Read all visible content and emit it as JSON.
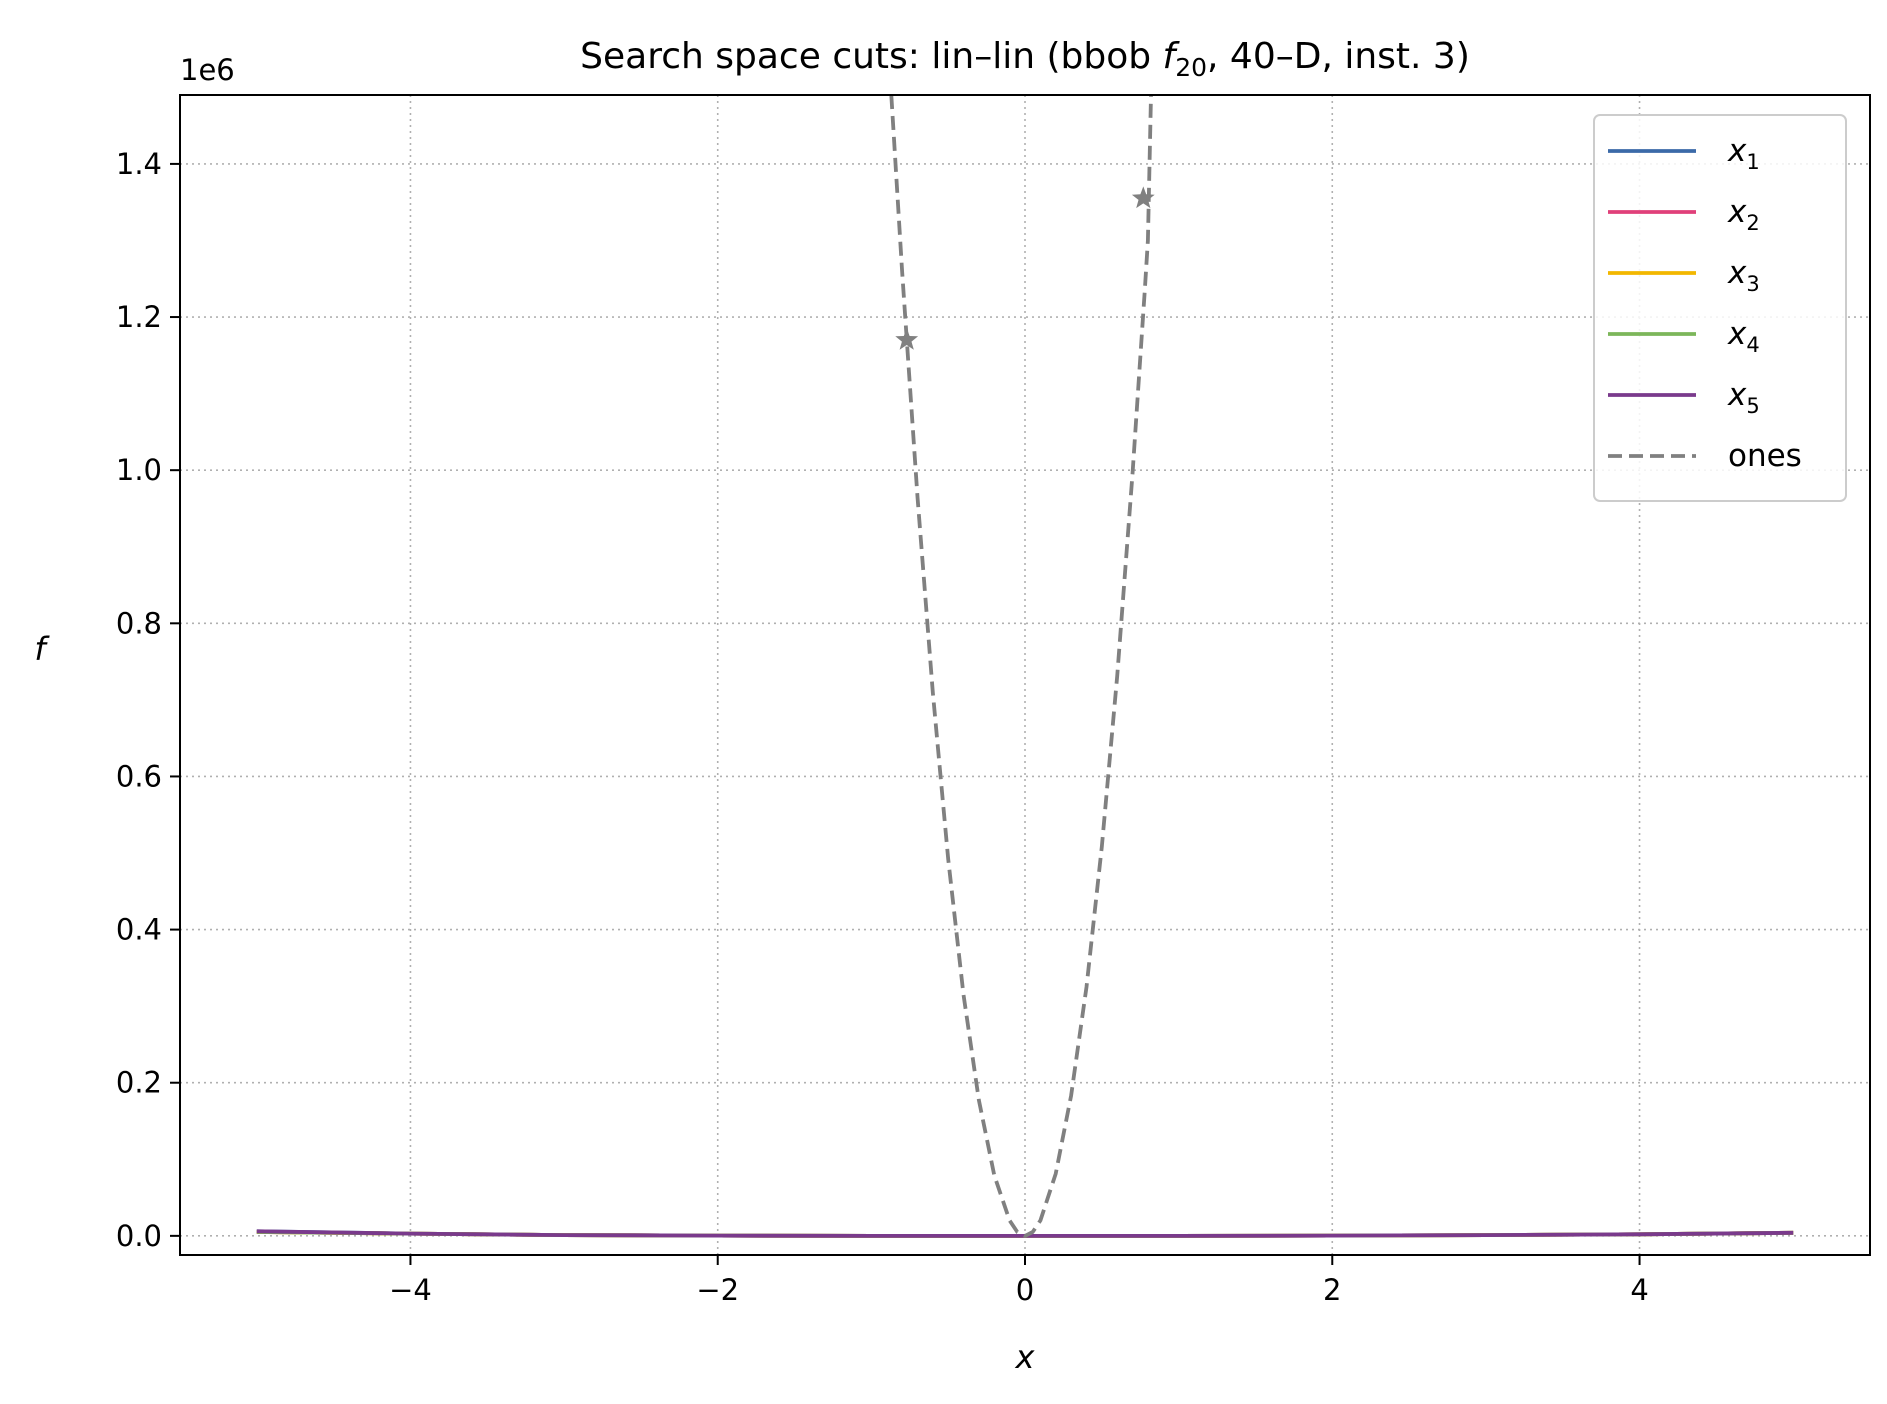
{
  "chart_data": {
    "type": "line",
    "title": {
      "main": "Search space cuts: lin–lin (bbob ",
      "func": "f",
      "func_sub": "20",
      "rest": ", 40–D, inst. 3)"
    },
    "xlabel": "x",
    "ylabel": "f",
    "y_offset_text": "1e6",
    "xlim": [
      -5.5,
      5.5
    ],
    "ylim": [
      -0.025,
      1.49
    ],
    "x_ticks": [
      -4,
      -2,
      0,
      2,
      4
    ],
    "x_tick_labels": [
      "−4",
      "−2",
      "0",
      "2",
      "4"
    ],
    "y_ticks": [
      0.0,
      0.2,
      0.4,
      0.6,
      0.8,
      1.0,
      1.2,
      1.4
    ],
    "y_tick_labels": [
      "0.0",
      "0.2",
      "0.4",
      "0.6",
      "0.8",
      "1.0",
      "1.2",
      "1.4"
    ],
    "grid": true,
    "legend_position": "top-right",
    "series": [
      {
        "name": "x",
        "sub": "1",
        "color": "#3b6aa8",
        "style": "solid",
        "x": [
          -5,
          -4,
          -3,
          -2,
          -1,
          0,
          1,
          2,
          3,
          4,
          5
        ],
        "y": [
          0.006,
          0.003,
          0.001,
          0.0003,
          0.0,
          0.0,
          0.0,
          0.0003,
          0.001,
          0.002,
          0.004
        ]
      },
      {
        "name": "x",
        "sub": "2",
        "color": "#e0407a",
        "style": "solid",
        "x": [
          -5,
          -4,
          -3,
          -2,
          -1,
          0,
          1,
          2,
          3,
          4,
          5
        ],
        "y": [
          0.005,
          0.003,
          0.001,
          0.0003,
          0.0,
          0.0,
          0.0,
          0.0003,
          0.001,
          0.002,
          0.004
        ]
      },
      {
        "name": "x",
        "sub": "3",
        "color": "#f2b700",
        "style": "solid",
        "x": [
          -5,
          -4,
          -3,
          -2,
          -1,
          0,
          1,
          2,
          3,
          4,
          5
        ],
        "y": [
          0.005,
          0.003,
          0.001,
          0.0003,
          0.0,
          0.0,
          0.0,
          0.0003,
          0.001,
          0.002,
          0.004
        ]
      },
      {
        "name": "x",
        "sub": "4",
        "color": "#7cb65a",
        "style": "solid",
        "x": [
          -5,
          -4,
          -3,
          -2,
          -1,
          0,
          1,
          2,
          3,
          4,
          5
        ],
        "y": [
          0.005,
          0.003,
          0.001,
          0.0003,
          0.0,
          0.0,
          0.0,
          0.0003,
          0.001,
          0.002,
          0.004
        ]
      },
      {
        "name": "x",
        "sub": "5",
        "color": "#7a3a8c",
        "style": "solid",
        "x": [
          -5,
          -4,
          -3,
          -2,
          -1,
          0,
          1,
          2,
          3,
          4,
          5
        ],
        "y": [
          0.006,
          0.003,
          0.001,
          0.0003,
          0.0,
          0.0,
          0.0,
          0.0003,
          0.001,
          0.002,
          0.004
        ]
      },
      {
        "name": "ones",
        "sub": "",
        "color": "#808080",
        "style": "dashed",
        "x": [
          -0.87,
          -0.8,
          -0.7,
          -0.6,
          -0.5,
          -0.4,
          -0.3,
          -0.2,
          -0.1,
          -0.05,
          0,
          0.05,
          0.1,
          0.2,
          0.3,
          0.4,
          0.5,
          0.6,
          0.7,
          0.78,
          0.8,
          0.82
        ],
        "y": [
          1.49,
          1.26,
          0.965,
          0.71,
          0.492,
          0.315,
          0.177,
          0.079,
          0.02,
          0.005,
          0.0,
          0.005,
          0.02,
          0.081,
          0.183,
          0.325,
          0.508,
          0.731,
          0.995,
          1.235,
          1.3,
          1.49
        ]
      }
    ],
    "markers": [
      {
        "series": "ones",
        "shape": "star",
        "x": -0.77,
        "y": 1.17
      },
      {
        "series": "ones",
        "shape": "star",
        "x": 0.77,
        "y": 1.355
      }
    ]
  }
}
